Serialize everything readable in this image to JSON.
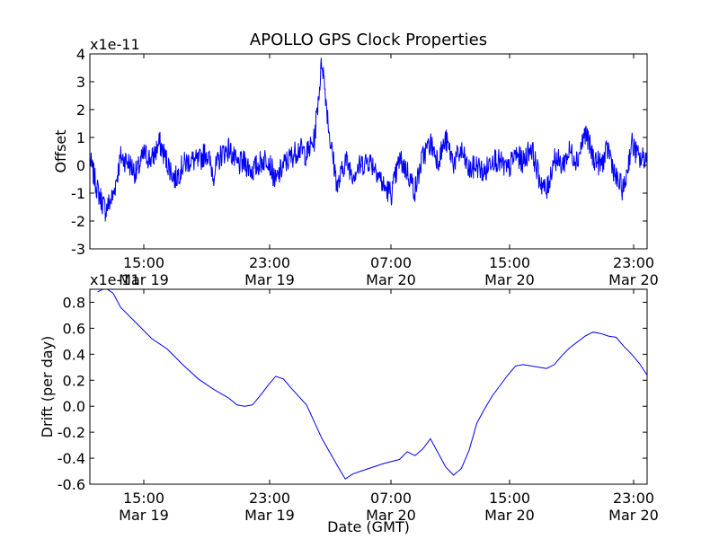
{
  "chart_data": [
    {
      "type": "line",
      "title": "APOLLO GPS Clock Properties",
      "xlabel": "",
      "ylabel": "Offset",
      "y_multiplier_label": "x1e-11",
      "ylim": [
        -3,
        4
      ],
      "yticks": [
        "-3",
        "-2",
        "-1",
        "0",
        "1",
        "2",
        "3",
        "4"
      ],
      "x_range_hours": [
        "2014-03-19 12:00",
        "2014-03-21 00:00"
      ],
      "xticks": [
        {
          "time": "15:00",
          "date": "Mar 19"
        },
        {
          "time": "23:00",
          "date": "Mar 19"
        },
        {
          "time": "07:00",
          "date": "Mar 20"
        },
        {
          "time": "15:00",
          "date": "Mar 20"
        },
        {
          "time": "23:00",
          "date": "Mar 20"
        }
      ],
      "series": [
        {
          "color": "#0000ff",
          "points": [
            [
              "Mar 19 12:00",
              0.2
            ],
            [
              "Mar 19 12:30",
              -0.9
            ],
            [
              "Mar 19 13:00",
              -1.6
            ],
            [
              "Mar 19 13:30",
              -1.1
            ],
            [
              "Mar 19 14:00",
              0.3
            ],
            [
              "Mar 19 14:30",
              0.1
            ],
            [
              "Mar 19 15:00",
              -0.3
            ],
            [
              "Mar 19 15:30",
              0.4
            ],
            [
              "Mar 19 16:00",
              0.2
            ],
            [
              "Mar 19 16:30",
              0.8
            ],
            [
              "Mar 19 17:00",
              0.1
            ],
            [
              "Mar 19 17:30",
              -0.5
            ],
            [
              "Mar 19 18:00",
              0.0
            ],
            [
              "Mar 19 18:30",
              0.2
            ],
            [
              "Mar 19 19:00",
              0.1
            ],
            [
              "Mar 19 19:30",
              0.5
            ],
            [
              "Mar 19 20:00",
              -0.3
            ],
            [
              "Mar 19 20:30",
              0.4
            ],
            [
              "Mar 19 21:00",
              0.6
            ],
            [
              "Mar 19 21:30",
              0.0
            ],
            [
              "Mar 19 22:00",
              0.1
            ],
            [
              "Mar 19 22:30",
              -0.2
            ],
            [
              "Mar 19 23:00",
              0.1
            ],
            [
              "Mar 19 23:30",
              0.3
            ],
            [
              "Mar 20 00:00",
              -0.6
            ],
            [
              "Mar 20 00:30",
              0.0
            ],
            [
              "Mar 20 01:00",
              0.3
            ],
            [
              "Mar 20 01:30",
              0.6
            ],
            [
              "Mar 20 02:00",
              0.4
            ],
            [
              "Mar 20 02:30",
              0.9
            ],
            [
              "Mar 20 03:00",
              3.8
            ],
            [
              "Mar 20 03:30",
              1.0
            ],
            [
              "Mar 20 04:00",
              -0.8
            ],
            [
              "Mar 20 04:30",
              0.2
            ],
            [
              "Mar 20 05:00",
              -0.3
            ],
            [
              "Mar 20 05:30",
              0.0
            ],
            [
              "Mar 20 06:00",
              0.2
            ],
            [
              "Mar 20 06:30",
              -0.1
            ],
            [
              "Mar 20 07:00",
              -0.8
            ],
            [
              "Mar 20 07:30",
              -1.0
            ],
            [
              "Mar 20 08:00",
              0.2
            ],
            [
              "Mar 20 08:30",
              -0.2
            ],
            [
              "Mar 20 09:00",
              -0.9
            ],
            [
              "Mar 20 09:30",
              0.3
            ],
            [
              "Mar 20 10:00",
              0.8
            ],
            [
              "Mar 20 10:30",
              0.2
            ],
            [
              "Mar 20 11:00",
              0.9
            ],
            [
              "Mar 20 11:30",
              0.1
            ],
            [
              "Mar 20 12:00",
              0.5
            ],
            [
              "Mar 20 12:30",
              -0.2
            ],
            [
              "Mar 20 13:00",
              0.0
            ],
            [
              "Mar 20 13:30",
              -0.3
            ],
            [
              "Mar 20 14:00",
              0.3
            ],
            [
              "Mar 20 14:30",
              0.1
            ],
            [
              "Mar 20 15:00",
              -0.2
            ],
            [
              "Mar 20 15:30",
              0.4
            ],
            [
              "Mar 20 16:00",
              0.1
            ],
            [
              "Mar 20 16:30",
              0.7
            ],
            [
              "Mar 20 17:00",
              -0.4
            ],
            [
              "Mar 20 17:30",
              -1.0
            ],
            [
              "Mar 20 18:00",
              0.3
            ],
            [
              "Mar 20 18:30",
              0.0
            ],
            [
              "Mar 20 19:00",
              0.5
            ],
            [
              "Mar 20 19:30",
              0.2
            ],
            [
              "Mar 20 20:00",
              1.2
            ],
            [
              "Mar 20 20:30",
              0.3
            ],
            [
              "Mar 20 21:00",
              0.0
            ],
            [
              "Mar 20 21:30",
              0.6
            ],
            [
              "Mar 20 22:00",
              -0.5
            ],
            [
              "Mar 20 22:30",
              -0.9
            ],
            [
              "Mar 20 23:00",
              0.8
            ],
            [
              "Mar 20 23:30",
              0.2
            ],
            [
              "Mar 21 00:00",
              0.3
            ]
          ]
        }
      ]
    },
    {
      "type": "line",
      "title": "",
      "xlabel": "Date (GMT)",
      "ylabel": "Drift (per day)",
      "y_multiplier_label": "x1e-11",
      "ylim": [
        -0.6,
        0.9
      ],
      "yticks": [
        "-0.6",
        "-0.4",
        "-0.2",
        "0.0",
        "0.2",
        "0.4",
        "0.6",
        "0.8"
      ],
      "xticks": [
        {
          "time": "15:00",
          "date": "Mar 19"
        },
        {
          "time": "23:00",
          "date": "Mar 19"
        },
        {
          "time": "07:00",
          "date": "Mar 20"
        },
        {
          "time": "15:00",
          "date": "Mar 20"
        },
        {
          "time": "23:00",
          "date": "Mar 20"
        }
      ],
      "series": [
        {
          "color": "#0000ff",
          "points": [
            [
              "Mar 19 12:30",
              0.88
            ],
            [
              "Mar 19 13:00",
              0.91
            ],
            [
              "Mar 19 13:30",
              0.87
            ],
            [
              "Mar 19 14:00",
              0.76
            ],
            [
              "Mar 19 15:00",
              0.64
            ],
            [
              "Mar 19 16:00",
              0.52
            ],
            [
              "Mar 19 17:00",
              0.44
            ],
            [
              "Mar 19 18:00",
              0.32
            ],
            [
              "Mar 19 19:00",
              0.21
            ],
            [
              "Mar 19 20:00",
              0.13
            ],
            [
              "Mar 19 21:00",
              0.06
            ],
            [
              "Mar 19 21:30",
              0.01
            ],
            [
              "Mar 19 22:00",
              0.0
            ],
            [
              "Mar 19 22:30",
              0.01
            ],
            [
              "Mar 19 23:00",
              0.08
            ],
            [
              "Mar 19 23:30",
              0.16
            ],
            [
              "Mar 20 00:00",
              0.23
            ],
            [
              "Mar 20 00:30",
              0.21
            ],
            [
              "Mar 20 01:00",
              0.14
            ],
            [
              "Mar 20 02:00",
              0.01
            ],
            [
              "Mar 20 03:00",
              -0.25
            ],
            [
              "Mar 20 04:00",
              -0.46
            ],
            [
              "Mar 20 04:30",
              -0.56
            ],
            [
              "Mar 20 05:00",
              -0.52
            ],
            [
              "Mar 20 06:00",
              -0.48
            ],
            [
              "Mar 20 07:00",
              -0.44
            ],
            [
              "Mar 20 08:00",
              -0.41
            ],
            [
              "Mar 20 08:30",
              -0.35
            ],
            [
              "Mar 20 09:00",
              -0.38
            ],
            [
              "Mar 20 09:30",
              -0.33
            ],
            [
              "Mar 20 10:00",
              -0.25
            ],
            [
              "Mar 20 10:30",
              -0.36
            ],
            [
              "Mar 20 11:00",
              -0.47
            ],
            [
              "Mar 20 11:30",
              -0.53
            ],
            [
              "Mar 20 12:00",
              -0.48
            ],
            [
              "Mar 20 12:30",
              -0.34
            ],
            [
              "Mar 20 13:00",
              -0.13
            ],
            [
              "Mar 20 13:30",
              -0.02
            ],
            [
              "Mar 20 14:00",
              0.08
            ],
            [
              "Mar 20 15:00",
              0.24
            ],
            [
              "Mar 20 15:30",
              0.31
            ],
            [
              "Mar 20 16:00",
              0.32
            ],
            [
              "Mar 20 17:00",
              0.3
            ],
            [
              "Mar 20 17:30",
              0.29
            ],
            [
              "Mar 20 18:00",
              0.32
            ],
            [
              "Mar 20 18:30",
              0.39
            ],
            [
              "Mar 20 19:00",
              0.45
            ],
            [
              "Mar 20 20:00",
              0.54
            ],
            [
              "Mar 20 20:30",
              0.57
            ],
            [
              "Mar 20 21:00",
              0.56
            ],
            [
              "Mar 20 21:30",
              0.54
            ],
            [
              "Mar 20 22:00",
              0.53
            ],
            [
              "Mar 20 22:30",
              0.46
            ],
            [
              "Mar 20 23:00",
              0.4
            ],
            [
              "Mar 20 23:30",
              0.33
            ],
            [
              "Mar 21 00:00",
              0.24
            ],
            [
              "Mar 21 00:20",
              0.19
            ]
          ]
        }
      ]
    }
  ]
}
